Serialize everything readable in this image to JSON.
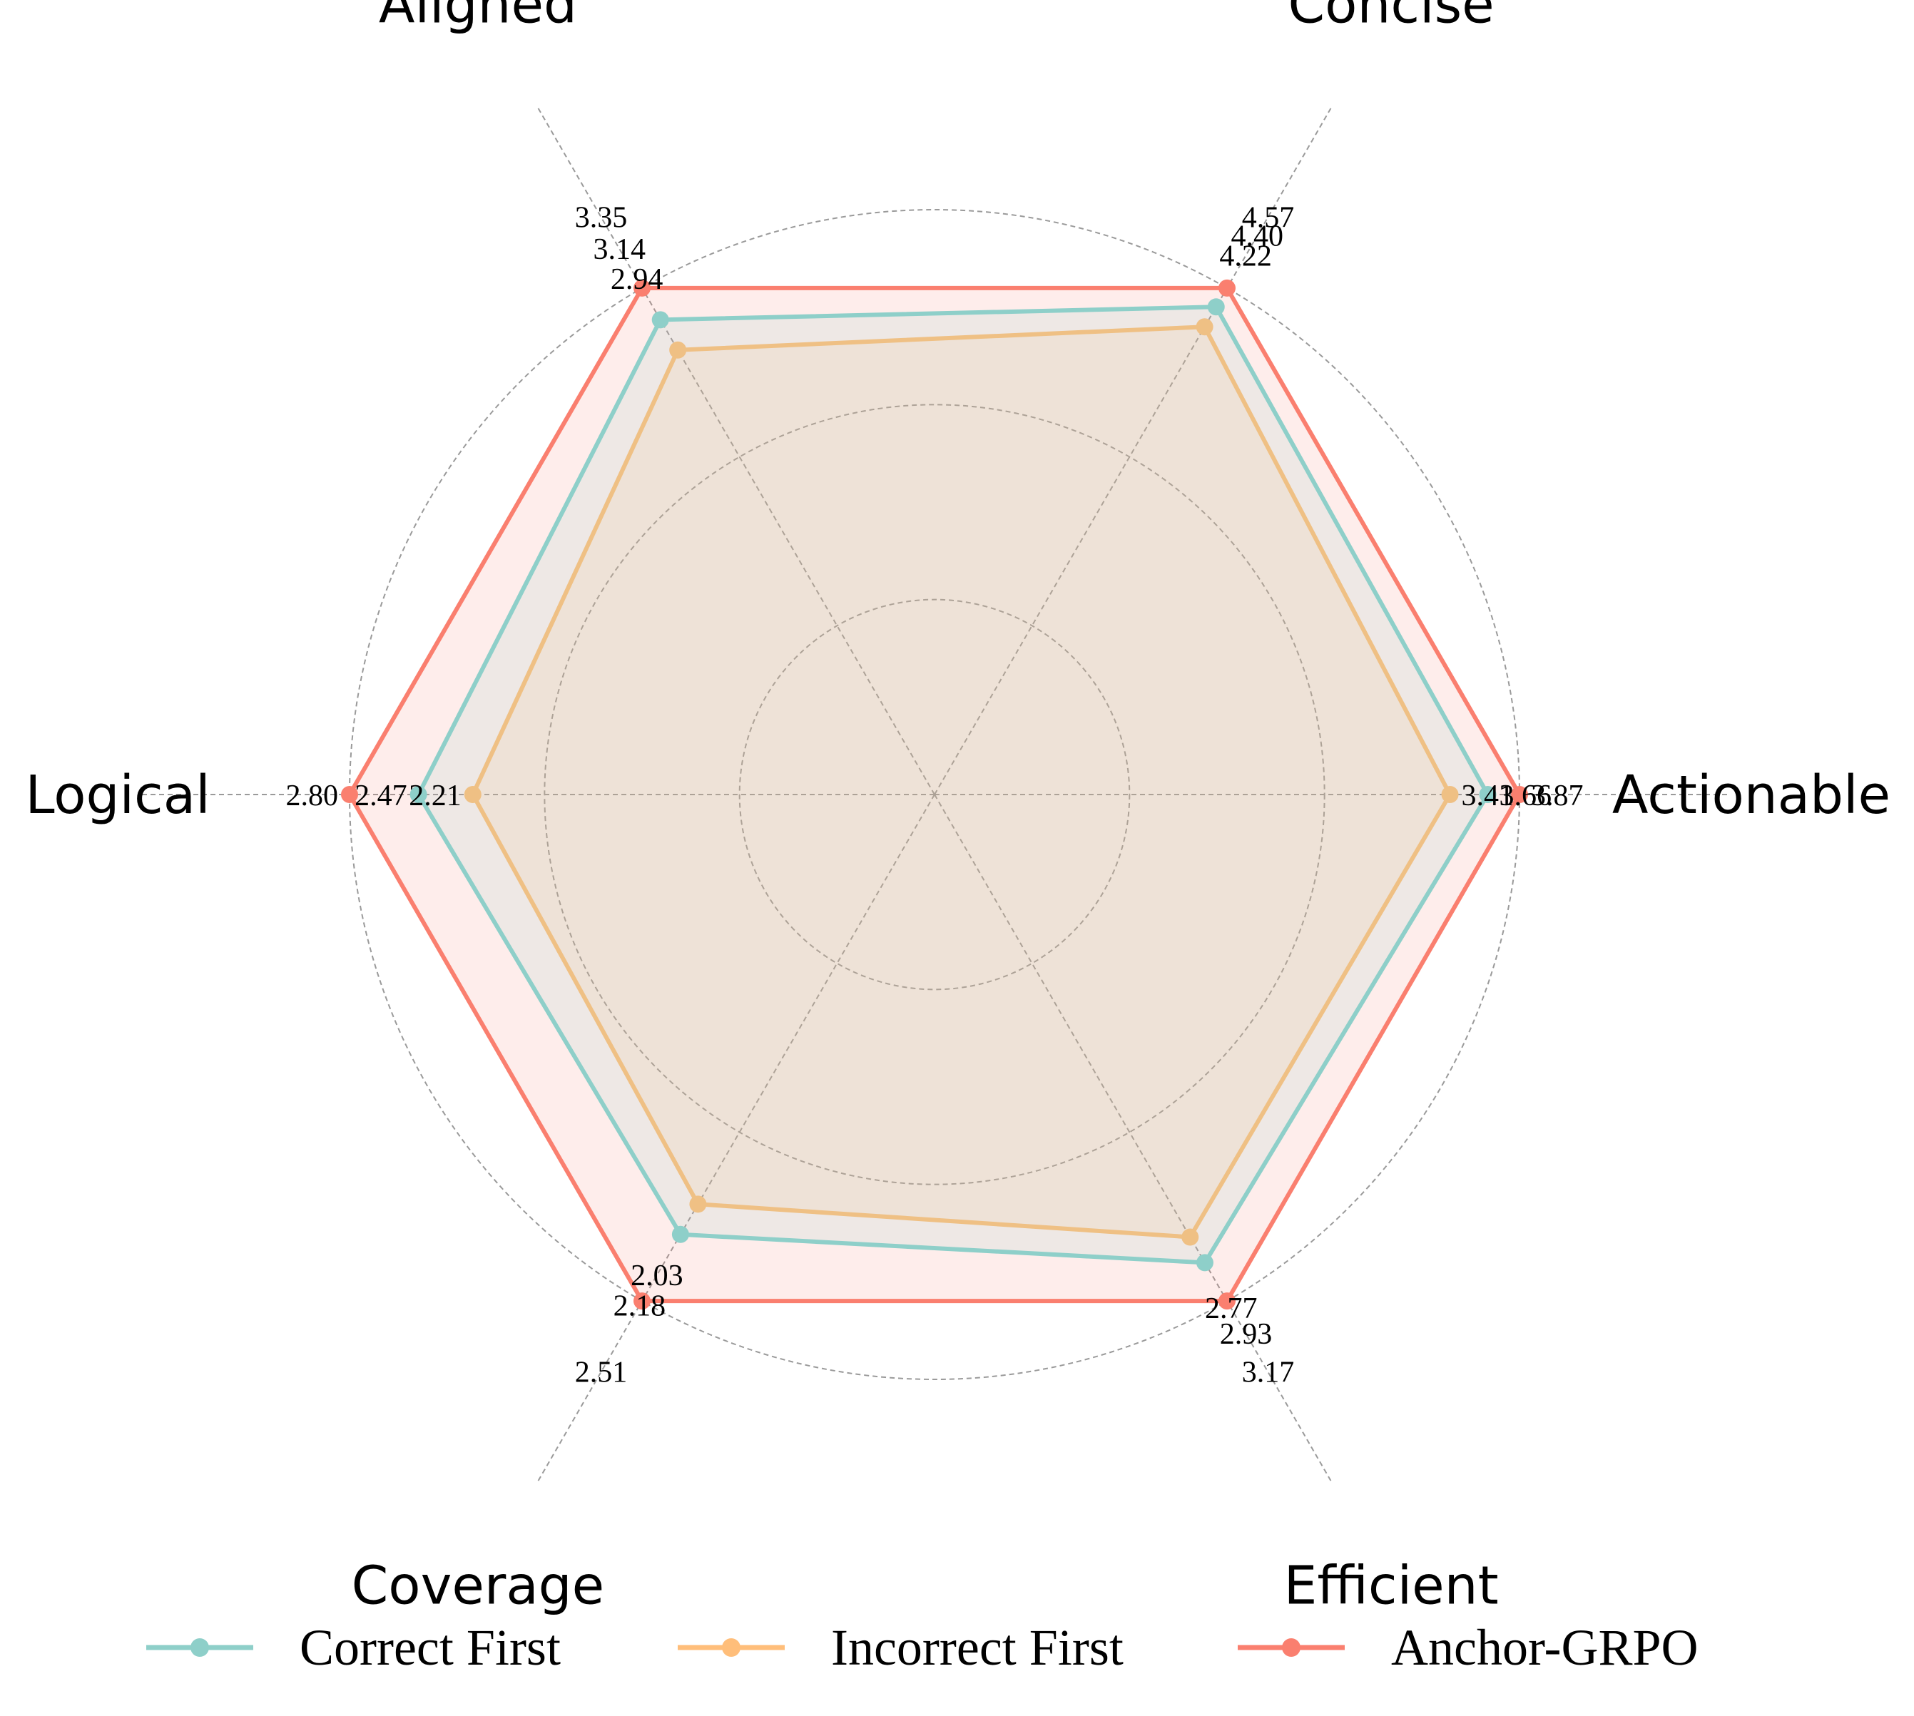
{
  "chart_data": {
    "type": "radar",
    "axes": [
      "Actionable",
      "Concise",
      "Aligned",
      "Logical",
      "Coverage",
      "Efficient"
    ],
    "series": [
      {
        "name": "Correct First",
        "color": "#8ECFC9",
        "values": [
          3.66,
          4.4,
          3.14,
          2.47,
          2.18,
          2.93
        ],
        "value_labels": [
          "3.66",
          "4.40",
          "3.14",
          "2.47",
          "2.18",
          "2.93"
        ]
      },
      {
        "name": "Incorrect First",
        "color": "#FFBE7A",
        "values": [
          3.41,
          4.22,
          2.94,
          2.21,
          2.03,
          2.77
        ],
        "value_labels": [
          "3.41",
          "4.22",
          "2.94",
          "2.21",
          "2.03",
          "2.77"
        ]
      },
      {
        "name": "Anchor-GRPO",
        "color": "#FA7F6F",
        "values": [
          3.87,
          4.57,
          3.35,
          2.8,
          2.51,
          3.17
        ],
        "value_labels": [
          "3.87",
          "4.57",
          "3.35",
          "2.80",
          "2.51",
          "3.17"
        ]
      }
    ],
    "grid_rings": 3,
    "grid": true,
    "legend_position": "bottom"
  }
}
